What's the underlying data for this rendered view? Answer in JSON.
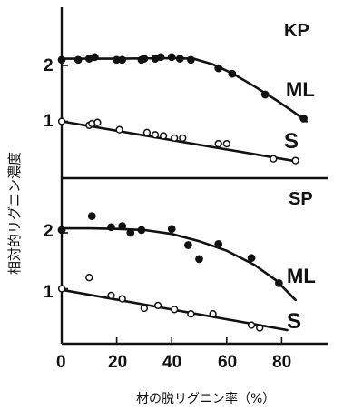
{
  "chart_data": {
    "type": "scatter",
    "xlabel": "材の脱リグニン率（%）",
    "ylabel": "相対的リグニン濃度",
    "xlim": [
      0,
      95
    ],
    "x_ticks": [
      "0",
      "20",
      "40",
      "60",
      "80"
    ],
    "panels": [
      {
        "title": "KP",
        "ylim": [
          0,
          2.8
        ],
        "y_ticks": [
          "1",
          "2"
        ],
        "series": [
          {
            "name": "ML",
            "marker": "filled-circle",
            "points": [
              [
                0,
                2.1
              ],
              [
                6,
                2.1
              ],
              [
                10,
                2.12
              ],
              [
                12,
                2.15
              ],
              [
                20,
                2.1
              ],
              [
                22,
                2.1
              ],
              [
                29,
                2.1
              ],
              [
                30,
                2.12
              ],
              [
                34,
                2.12
              ],
              [
                36,
                2.15
              ],
              [
                40,
                2.15
              ],
              [
                43,
                2.12
              ],
              [
                47,
                2.1
              ],
              [
                57,
                1.95
              ],
              [
                62,
                1.85
              ],
              [
                74,
                1.48
              ],
              [
                88,
                1.05
              ]
            ],
            "fit": [
              [
                0,
                2.12
              ],
              [
                20,
                2.12
              ],
              [
                40,
                2.13
              ],
              [
                48,
                2.12
              ],
              [
                55,
                2.02
              ],
              [
                62,
                1.86
              ],
              [
                70,
                1.63
              ],
              [
                78,
                1.38
              ],
              [
                84,
                1.18
              ],
              [
                89,
                1.0
              ]
            ]
          },
          {
            "name": "S",
            "marker": "open-circle",
            "points": [
              [
                0,
                1.0
              ],
              [
                10,
                0.93
              ],
              [
                11,
                0.96
              ],
              [
                13,
                0.98
              ],
              [
                21,
                0.85
              ],
              [
                31,
                0.8
              ],
              [
                34,
                0.76
              ],
              [
                37,
                0.74
              ],
              [
                41,
                0.7
              ],
              [
                44,
                0.7
              ],
              [
                57,
                0.6
              ],
              [
                60,
                0.6
              ],
              [
                77,
                0.33
              ],
              [
                85,
                0.3
              ]
            ],
            "fit": [
              [
                0,
                1.0
              ],
              [
                86,
                0.28
              ]
            ]
          }
        ]
      },
      {
        "title": "SP",
        "ylim": [
          0,
          2.8
        ],
        "y_ticks": [
          "1",
          "2"
        ],
        "series": [
          {
            "name": "ML",
            "marker": "filled-circle",
            "points": [
              [
                0,
                2.05
              ],
              [
                11,
                2.3
              ],
              [
                18,
                2.1
              ],
              [
                22,
                2.12
              ],
              [
                25,
                2.0
              ],
              [
                29,
                2.05
              ],
              [
                40,
                2.07
              ],
              [
                46,
                1.78
              ],
              [
                50,
                1.53
              ],
              [
                57,
                1.8
              ],
              [
                69,
                1.55
              ],
              [
                79,
                1.1
              ]
            ],
            "fit": [
              [
                0,
                2.08
              ],
              [
                10,
                2.08
              ],
              [
                20,
                2.07
              ],
              [
                30,
                2.05
              ],
              [
                40,
                1.98
              ],
              [
                50,
                1.85
              ],
              [
                60,
                1.68
              ],
              [
                70,
                1.43
              ],
              [
                78,
                1.15
              ],
              [
                85,
                0.8
              ]
            ]
          },
          {
            "name": "S",
            "marker": "open-circle",
            "points": [
              [
                0,
                1.0
              ],
              [
                10,
                1.2
              ],
              [
                18,
                0.88
              ],
              [
                22,
                0.82
              ],
              [
                30,
                0.65
              ],
              [
                35,
                0.7
              ],
              [
                41,
                0.63
              ],
              [
                47,
                0.55
              ],
              [
                55,
                0.55
              ],
              [
                69,
                0.35
              ],
              [
                72,
                0.3
              ]
            ],
            "fit": [
              [
                0,
                0.98
              ],
              [
                82,
                0.26
              ]
            ]
          }
        ]
      }
    ]
  }
}
